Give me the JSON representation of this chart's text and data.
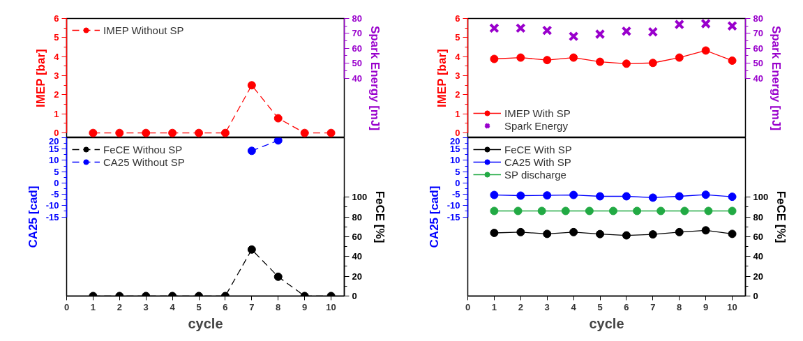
{
  "chart_data": [
    {
      "type": "line",
      "ylabel": "IMEP [bar]",
      "y2label": "Spark Energy [mJ]",
      "x": [
        1,
        2,
        3,
        4,
        5,
        6,
        7,
        8,
        9,
        10
      ],
      "xlim": [
        0,
        10.5
      ],
      "xticks": [
        0,
        1,
        2,
        3,
        4,
        5,
        6,
        7,
        8,
        9,
        10
      ],
      "tick_labels": "y",
      "ylim": [
        -0.25,
        6
      ],
      "yticks": [
        0,
        1,
        2,
        3,
        4,
        5,
        6
      ],
      "y2lim": [
        0,
        80
      ],
      "y2ticks": [
        40,
        50,
        60,
        70,
        80
      ],
      "grid": false,
      "legend": "top left",
      "marker": "circle",
      "line_style": "dashed",
      "series": [
        {
          "name": "IMEP Without SP",
          "color": "#ff0000",
          "values": [
            0,
            0,
            0,
            0,
            0,
            0,
            2.5,
            0.77,
            0,
            0
          ]
        },
        {
          "type": "scatter",
          "color": "#9900cc",
          "axis": "y2",
          "values": [
            null,
            null,
            null,
            null,
            null,
            null,
            null,
            null,
            null,
            null
          ]
        }
      ]
    },
    {
      "type": "line",
      "xlabel": "cycle",
      "ylabel": "CA25 [cad]",
      "y2label": "FeCE [%]",
      "x": [
        1,
        2,
        3,
        4,
        5,
        6,
        7,
        8,
        9,
        10
      ],
      "xlim": [
        0,
        10.5
      ],
      "xticks": [
        0,
        1,
        2,
        3,
        4,
        5,
        6,
        7,
        8,
        9,
        10
      ],
      "ylim": [
        -50,
        20
      ],
      "yticks": [
        -15,
        -10,
        -5,
        0,
        5,
        10,
        15,
        20
      ],
      "y2lim": [
        0,
        160
      ],
      "y2ticks": [
        0,
        20,
        40,
        60,
        80,
        100
      ],
      "grid": false,
      "legend": "top left",
      "marker": "circle",
      "line_style": "dashed",
      "series": [
        {
          "name": "FeCE Withou SP",
          "color": "#000000",
          "axis": "y2",
          "values": [
            0,
            0,
            0,
            0,
            0,
            0,
            47,
            19.5,
            0,
            0
          ]
        },
        {
          "name": "CA25 Without SP",
          "color": "#0000ff",
          "values": [
            null,
            null,
            null,
            null,
            null,
            null,
            14.2,
            18.8,
            null,
            null
          ]
        }
      ]
    },
    {
      "type": "line",
      "ylabel": "IMEP [bar]",
      "y2label": "Spark Energy [mJ]",
      "x": [
        1,
        2,
        3,
        4,
        5,
        6,
        7,
        8,
        9,
        10
      ],
      "xlim": [
        0,
        10.5
      ],
      "xticks": [
        0,
        1,
        2,
        3,
        4,
        5,
        6,
        7,
        8,
        9,
        10
      ],
      "tick_labels": "y",
      "ylim": [
        -0.25,
        6
      ],
      "yticks": [
        0,
        1,
        2,
        3,
        4,
        5,
        6
      ],
      "y2lim": [
        0,
        80
      ],
      "y2ticks": [
        40,
        50,
        60,
        70,
        80
      ],
      "grid": false,
      "legend": "bottom left",
      "marker": "circle",
      "line_style": "solid",
      "series": [
        {
          "name": "IMEP With SP",
          "color": "#ff0000",
          "values": [
            3.88,
            3.95,
            3.82,
            3.95,
            3.73,
            3.63,
            3.67,
            3.95,
            4.32,
            3.79
          ]
        },
        {
          "name": "Spark Energy",
          "type": "scatter",
          "marker": "cross",
          "color": "#9900cc",
          "axis": "y2",
          "values": [
            73.5,
            73.5,
            72,
            68,
            69.5,
            71.5,
            71,
            76,
            76.5,
            75
          ]
        }
      ]
    },
    {
      "type": "line",
      "xlabel": "cycle",
      "ylabel": "CA25 [cad]",
      "y2label": "FeCE [%]",
      "x": [
        1,
        2,
        3,
        4,
        5,
        6,
        7,
        8,
        9,
        10
      ],
      "xlim": [
        0,
        10.5
      ],
      "xticks": [
        0,
        1,
        2,
        3,
        4,
        5,
        6,
        7,
        8,
        9,
        10
      ],
      "ylim": [
        -50,
        20
      ],
      "yticks": [
        -15,
        -10,
        -5,
        0,
        5,
        10,
        15,
        20
      ],
      "y2lim": [
        0,
        160
      ],
      "y2ticks": [
        0,
        20,
        40,
        60,
        80,
        100
      ],
      "grid": false,
      "legend": "top left",
      "marker": "circle",
      "line_style": "solid",
      "series": [
        {
          "name": "FeCE With SP",
          "color": "#000000",
          "axis": "y2",
          "values": [
            63.8,
            64.6,
            62.8,
            64.6,
            62.6,
            61.3,
            62.3,
            64.6,
            66.4,
            62.8
          ]
        },
        {
          "name": "CA25 With SP",
          "color": "#0000ff",
          "values": [
            -5.3,
            -5.6,
            -5.5,
            -5.3,
            -5.9,
            -5.9,
            -6.5,
            -5.9,
            -5.2,
            -6.1
          ]
        },
        {
          "name": "SP discharge",
          "color": "#22aa44",
          "axis": "y2",
          "x": [
            1,
            1.9,
            2.8,
            3.7,
            4.6,
            5.5,
            6.4,
            7.3,
            8.2,
            9.1,
            10
          ],
          "values": [
            86,
            86,
            86,
            86,
            86,
            86,
            86,
            86,
            86,
            86,
            86
          ]
        }
      ]
    }
  ]
}
